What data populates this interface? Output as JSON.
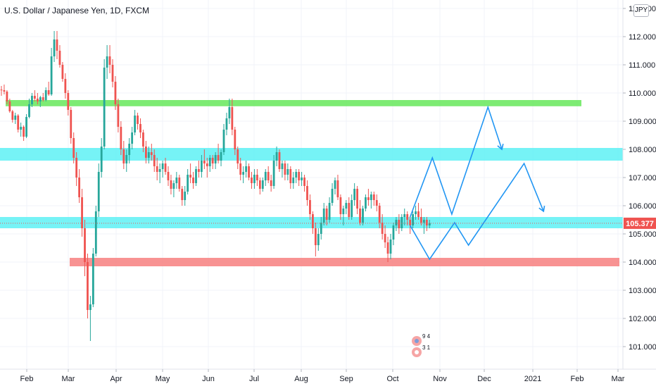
{
  "header": {
    "title": "U.S. Dollar / Japanese Yen, 1D, FXCM",
    "currency": "JPY"
  },
  "chart_data": {
    "type": "candlestick",
    "ylim": [
      100.2,
      113.3
    ],
    "y_ticks": [
      "101.000",
      "102.000",
      "103.000",
      "104.000",
      "105.000",
      "106.000",
      "107.000",
      "108.000",
      "109.000",
      "110.000",
      "111.000",
      "112.000",
      "113.000"
    ],
    "x_ticks": [
      "Feb",
      "Mar",
      "Apr",
      "May",
      "Jun",
      "Jul",
      "Aug",
      "Sep",
      "Oct",
      "Nov",
      "Dec",
      "2021",
      "Feb",
      "Mar"
    ],
    "last_price": "105.377",
    "colors": {
      "up": "#26a69a",
      "down": "#ef5350",
      "zone_green": "#66e85a",
      "zone_cyan": "#5ef1f5",
      "zone_red": "#f77f7f",
      "projection": "#2196f3",
      "price_tag": "#ef5350"
    },
    "zones": [
      {
        "color": "green",
        "from": 109.53,
        "to": 109.75
      },
      {
        "color": "cyan",
        "from": 107.6,
        "to": 108.05
      },
      {
        "color": "cyan",
        "from": 105.2,
        "to": 105.6
      },
      {
        "color": "red",
        "from": 103.85,
        "to": 104.15
      }
    ],
    "candles": [
      [
        110.12,
        110.25,
        109.9,
        110.1
      ],
      [
        110.1,
        110.3,
        109.95,
        110.05
      ],
      [
        110.05,
        110.1,
        109.6,
        109.7
      ],
      [
        109.7,
        109.8,
        109.3,
        109.35
      ],
      [
        109.35,
        109.4,
        108.95,
        109.05
      ],
      [
        109.05,
        109.3,
        108.9,
        109.2
      ],
      [
        109.2,
        109.25,
        108.6,
        108.7
      ],
      [
        108.7,
        108.95,
        108.45,
        108.8
      ],
      [
        108.8,
        108.85,
        108.3,
        108.45
      ],
      [
        108.45,
        109.25,
        108.4,
        109.15
      ],
      [
        109.15,
        109.8,
        109.1,
        109.6
      ],
      [
        109.6,
        110.0,
        109.5,
        109.9
      ],
      [
        109.9,
        110.1,
        109.7,
        109.8
      ],
      [
        109.8,
        110.0,
        109.6,
        109.7
      ],
      [
        109.7,
        109.9,
        109.5,
        109.85
      ],
      [
        109.85,
        110.0,
        109.7,
        109.75
      ],
      [
        109.75,
        110.2,
        109.7,
        110.1
      ],
      [
        110.1,
        110.4,
        109.9,
        109.95
      ],
      [
        109.95,
        111.6,
        109.9,
        111.3
      ],
      [
        111.3,
        112.2,
        111.1,
        111.9
      ],
      [
        111.9,
        112.2,
        111.2,
        111.5
      ],
      [
        111.5,
        111.7,
        110.9,
        111.0
      ],
      [
        111.0,
        111.1,
        110.4,
        110.5
      ],
      [
        110.5,
        110.7,
        109.8,
        110.0
      ],
      [
        110.0,
        110.1,
        109.2,
        109.4
      ],
      [
        109.4,
        109.5,
        108.2,
        108.4
      ],
      [
        108.4,
        108.6,
        107.5,
        107.7
      ],
      [
        107.7,
        107.9,
        106.7,
        107.0
      ],
      [
        107.0,
        107.3,
        106.1,
        106.3
      ],
      [
        106.3,
        106.6,
        104.9,
        105.2
      ],
      [
        105.2,
        105.5,
        103.5,
        104.0
      ],
      [
        104.0,
        104.3,
        102.0,
        102.3
      ],
      [
        102.3,
        102.8,
        101.2,
        102.5
      ],
      [
        102.5,
        104.5,
        102.4,
        104.3
      ],
      [
        104.3,
        106.0,
        104.2,
        105.8
      ],
      [
        105.8,
        107.5,
        105.6,
        107.2
      ],
      [
        107.2,
        108.4,
        107.0,
        108.1
      ],
      [
        108.1,
        111.2,
        108.0,
        110.9
      ],
      [
        110.9,
        111.7,
        110.5,
        111.3
      ],
      [
        111.3,
        111.7,
        110.7,
        111.0
      ],
      [
        111.0,
        111.2,
        110.2,
        110.4
      ],
      [
        110.4,
        110.6,
        109.4,
        109.6
      ],
      [
        109.6,
        109.8,
        108.6,
        108.8
      ],
      [
        108.8,
        109.0,
        107.8,
        108.0
      ],
      [
        108.0,
        108.3,
        107.3,
        107.5
      ],
      [
        107.5,
        108.0,
        107.2,
        107.8
      ],
      [
        107.8,
        108.4,
        107.5,
        108.2
      ],
      [
        108.2,
        108.8,
        108.0,
        108.6
      ],
      [
        108.6,
        109.4,
        108.5,
        109.2
      ],
      [
        109.2,
        109.3,
        108.7,
        108.9
      ],
      [
        108.9,
        109.1,
        108.4,
        108.6
      ],
      [
        108.6,
        108.7,
        107.9,
        108.1
      ],
      [
        108.1,
        108.3,
        107.5,
        107.7
      ],
      [
        107.7,
        108.1,
        107.5,
        107.9
      ],
      [
        107.9,
        108.2,
        107.6,
        107.8
      ],
      [
        107.8,
        108.0,
        107.2,
        107.4
      ],
      [
        107.4,
        107.7,
        106.9,
        107.2
      ],
      [
        107.2,
        107.5,
        106.8,
        107.3
      ],
      [
        107.3,
        107.6,
        107.0,
        107.5
      ],
      [
        107.5,
        107.7,
        107.1,
        107.2
      ],
      [
        107.2,
        107.4,
        106.7,
        106.9
      ],
      [
        106.9,
        107.1,
        106.4,
        106.6
      ],
      [
        106.6,
        106.9,
        106.3,
        106.8
      ],
      [
        106.8,
        107.2,
        106.6,
        107.0
      ],
      [
        107.0,
        107.1,
        106.5,
        106.6
      ],
      [
        106.6,
        106.7,
        106.0,
        106.2
      ],
      [
        106.2,
        106.7,
        106.0,
        106.5
      ],
      [
        106.5,
        107.3,
        106.4,
        107.1
      ],
      [
        107.1,
        107.5,
        106.8,
        107.0
      ],
      [
        107.0,
        107.2,
        106.6,
        106.8
      ],
      [
        106.8,
        107.4,
        106.7,
        107.3
      ],
      [
        107.3,
        107.6,
        107.0,
        107.2
      ],
      [
        107.2,
        107.8,
        107.0,
        107.6
      ],
      [
        107.6,
        108.0,
        107.3,
        107.5
      ],
      [
        107.5,
        107.7,
        107.0,
        107.4
      ],
      [
        107.4,
        107.8,
        107.2,
        107.7
      ],
      [
        107.7,
        107.8,
        107.3,
        107.5
      ],
      [
        107.5,
        107.9,
        107.3,
        107.8
      ],
      [
        107.8,
        108.2,
        107.5,
        107.6
      ],
      [
        107.6,
        108.0,
        107.4,
        107.9
      ],
      [
        107.9,
        108.9,
        107.8,
        108.7
      ],
      [
        108.7,
        109.3,
        108.5,
        109.1
      ],
      [
        109.1,
        109.8,
        108.9,
        109.5
      ],
      [
        109.5,
        109.8,
        108.5,
        108.7
      ],
      [
        108.7,
        108.8,
        107.8,
        108.0
      ],
      [
        108.0,
        108.1,
        107.3,
        107.5
      ],
      [
        107.5,
        107.7,
        106.9,
        107.1
      ],
      [
        107.1,
        107.4,
        106.8,
        107.2
      ],
      [
        107.2,
        107.6,
        107.0,
        107.4
      ],
      [
        107.4,
        107.5,
        106.9,
        107.0
      ],
      [
        107.0,
        107.2,
        106.6,
        106.8
      ],
      [
        106.8,
        107.3,
        106.6,
        107.1
      ],
      [
        107.1,
        107.3,
        106.7,
        106.9
      ],
      [
        106.9,
        107.0,
        106.4,
        106.6
      ],
      [
        106.6,
        107.0,
        106.5,
        106.9
      ],
      [
        106.9,
        107.3,
        106.7,
        107.2
      ],
      [
        107.2,
        107.4,
        106.8,
        106.9
      ],
      [
        106.9,
        107.1,
        106.5,
        106.7
      ],
      [
        106.7,
        107.8,
        106.6,
        107.6
      ],
      [
        107.6,
        108.1,
        107.4,
        107.9
      ],
      [
        107.9,
        108.0,
        107.2,
        107.3
      ],
      [
        107.3,
        107.6,
        107.0,
        107.5
      ],
      [
        107.5,
        107.6,
        106.9,
        107.1
      ],
      [
        107.1,
        107.5,
        106.9,
        107.3
      ],
      [
        107.3,
        107.4,
        106.6,
        106.8
      ],
      [
        106.8,
        107.2,
        106.6,
        107.0
      ],
      [
        107.0,
        107.3,
        106.8,
        107.2
      ],
      [
        107.2,
        107.3,
        106.7,
        106.9
      ],
      [
        106.9,
        107.2,
        106.7,
        107.0
      ],
      [
        107.0,
        107.1,
        106.5,
        106.7
      ],
      [
        106.7,
        106.9,
        106.0,
        106.2
      ],
      [
        106.2,
        106.4,
        105.5,
        105.7
      ],
      [
        105.7,
        105.8,
        105.0,
        105.2
      ],
      [
        105.2,
        105.4,
        104.2,
        104.6
      ],
      [
        104.6,
        105.2,
        104.4,
        105.0
      ],
      [
        105.0,
        105.6,
        104.8,
        105.4
      ],
      [
        105.4,
        106.1,
        105.3,
        105.9
      ],
      [
        105.9,
        106.0,
        105.3,
        105.5
      ],
      [
        105.5,
        106.3,
        105.4,
        106.1
      ],
      [
        106.1,
        106.8,
        106.0,
        106.6
      ],
      [
        106.6,
        107.0,
        106.4,
        106.9
      ],
      [
        106.9,
        107.1,
        106.2,
        106.3
      ],
      [
        106.3,
        106.4,
        105.5,
        105.7
      ],
      [
        105.7,
        106.0,
        105.3,
        105.9
      ],
      [
        105.9,
        106.2,
        105.7,
        106.1
      ],
      [
        106.1,
        106.3,
        105.5,
        105.6
      ],
      [
        105.6,
        106.4,
        105.5,
        106.2
      ],
      [
        106.2,
        106.8,
        106.0,
        106.6
      ],
      [
        106.6,
        106.7,
        105.7,
        105.9
      ],
      [
        105.9,
        106.2,
        105.3,
        105.4
      ],
      [
        105.4,
        106.0,
        105.3,
        105.9
      ],
      [
        105.9,
        106.4,
        105.8,
        106.3
      ],
      [
        106.3,
        106.6,
        106.0,
        106.2
      ],
      [
        106.2,
        106.5,
        105.9,
        106.4
      ],
      [
        106.4,
        106.5,
        106.0,
        106.2
      ],
      [
        106.2,
        106.4,
        105.8,
        106.0
      ],
      [
        106.0,
        106.1,
        105.2,
        105.4
      ],
      [
        105.4,
        105.7,
        104.8,
        105.0
      ],
      [
        105.0,
        105.3,
        104.5,
        104.7
      ],
      [
        104.7,
        104.9,
        104.0,
        104.3
      ],
      [
        104.3,
        105.0,
        104.1,
        104.8
      ],
      [
        104.8,
        105.4,
        104.6,
        105.3
      ],
      [
        105.3,
        105.6,
        105.1,
        105.5
      ],
      [
        105.5,
        105.7,
        105.0,
        105.2
      ],
      [
        105.2,
        105.7,
        105.1,
        105.6
      ],
      [
        105.6,
        105.9,
        105.3,
        105.7
      ],
      [
        105.7,
        105.8,
        105.3,
        105.5
      ],
      [
        105.5,
        105.6,
        105.0,
        105.3
      ],
      [
        105.3,
        105.8,
        105.2,
        105.7
      ],
      [
        105.7,
        106.0,
        105.5,
        105.8
      ],
      [
        105.8,
        106.1,
        105.5,
        105.6
      ],
      [
        105.6,
        105.9,
        105.3,
        105.4
      ],
      [
        105.4,
        105.6,
        105.0,
        105.5
      ],
      [
        105.5,
        105.6,
        105.1,
        105.3
      ],
      [
        105.3,
        105.5,
        105.2,
        105.38
      ]
    ],
    "projections": [
      {
        "start": [
          147,
          105.6
        ],
        "points": [
          [
            155,
            107.7
          ],
          [
            162,
            105.7
          ],
          [
            175,
            109.5
          ],
          [
            180,
            108.0
          ]
        ]
      },
      {
        "start": [
          147,
          105.3
        ],
        "points": [
          [
            154,
            104.1
          ],
          [
            163,
            105.4
          ],
          [
            168,
            104.6
          ],
          [
            188,
            107.5
          ],
          [
            195,
            105.8
          ]
        ]
      }
    ],
    "watermark_text": [
      "9 4",
      "3 1"
    ]
  }
}
